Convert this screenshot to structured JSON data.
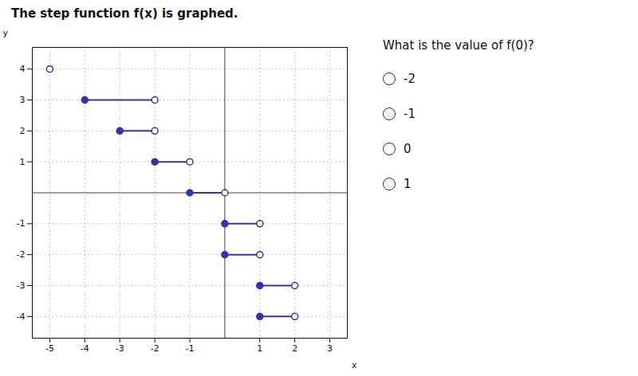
{
  "chart_data": {
    "type": "step",
    "title": "The step function f(x) is graphed.",
    "subtitle": "What is the value of f(0)?",
    "annotations": [
      "-2",
      "-1",
      "0",
      "1"
    ],
    "xlabel": "x",
    "ylabel": "y",
    "color": "#3333aa",
    "xlim": [
      -5.5,
      3.5
    ],
    "ylim": [
      -4.7,
      4.7
    ],
    "xticks": [
      -5,
      -4,
      -3,
      -2,
      -1,
      1,
      2,
      3
    ],
    "yticks": [
      -4,
      -3,
      -2,
      -1,
      1,
      2,
      3,
      4
    ],
    "grid": true,
    "segments": [
      {
        "x_closed": -4,
        "x_open": -2,
        "y": 3
      },
      {
        "x_closed": -3,
        "x_open": -2,
        "y": 2
      },
      {
        "x_closed": -2,
        "x_open": -1,
        "y": 1
      },
      {
        "x_closed": -1,
        "x_open": 0,
        "y": 0
      },
      {
        "x_closed": 0,
        "x_open": 1,
        "y": -1
      },
      {
        "x_closed": 0,
        "x_open": 1,
        "y": -2
      },
      {
        "x_closed": 1,
        "x_open": 2,
        "y": -3
      },
      {
        "x_closed": 1,
        "x_open": 2,
        "y": -4
      }
    ],
    "isolated_open": [
      [
        -5,
        4
      ]
    ]
  }
}
